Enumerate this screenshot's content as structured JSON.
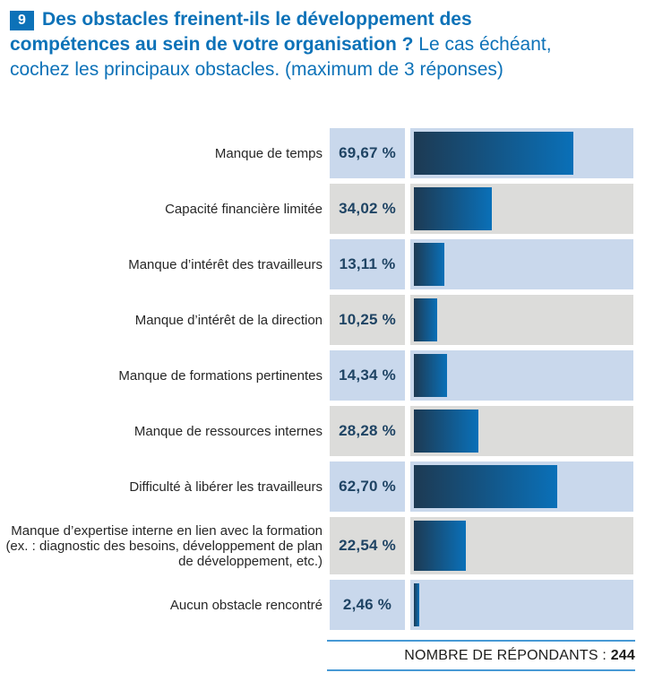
{
  "header": {
    "number": "9",
    "lines": [
      {
        "bold": "Des obstacles freinent-ils le développement des",
        "regular": ""
      },
      {
        "bold": "compétences au sein de votre organisation ? ",
        "regular": "Le cas échéant,"
      },
      {
        "bold": "",
        "regular": "cochez les principaux obstacles. (maximum de 3 réponses)"
      }
    ]
  },
  "chart_data": {
    "type": "bar",
    "orientation": "horizontal",
    "title": "Des obstacles freinent-ils le développement des compétences au sein de votre organisation ? Le cas échéant, cochez les principaux obstacles. (maximum de 3 réponses)",
    "xlim": [
      0,
      100
    ],
    "unit": "%",
    "grid": false,
    "legend": null,
    "categories": [
      "Manque de temps",
      "Capacité financière limitée",
      "Manque d’intérêt des travailleurs",
      "Manque d’intérêt de la direction",
      "Manque de formations pertinentes",
      "Manque de ressources internes",
      "Difficulté à libérer les travailleurs",
      "Manque d’expertise interne en lien avec la formation (ex. : diagnostic des besoins, développement de plan de développement, etc.)",
      "Aucun obstacle rencontré"
    ],
    "values": [
      69.67,
      34.02,
      13.11,
      10.25,
      14.34,
      28.28,
      62.7,
      22.54,
      2.46
    ],
    "value_labels": [
      "69,67 %",
      "34,02 %",
      "13,11 %",
      "10,25 %",
      "14,34 %",
      "28,28 %",
      "62,70 %",
      "22,54 %",
      "2,46 %"
    ],
    "respondents_label": "NOMBRE DE RÉPONDANTS :",
    "respondents": 244,
    "colors": {
      "accent_blue": "#0d72b8",
      "row_alt_blue": "#c9d8ec",
      "row_alt_gray": "#dcdcda",
      "bar_gradient_start": "#1d3a53",
      "bar_gradient_end": "#0a70b8",
      "value_text": "#1f4464",
      "footer_line": "#4799d5"
    }
  }
}
